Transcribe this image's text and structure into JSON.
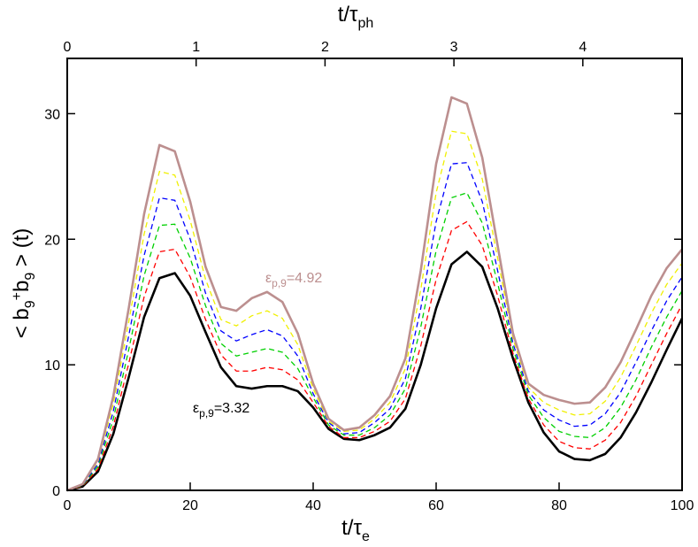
{
  "chart_data": {
    "type": "line",
    "xlabel": [
      "t/τ",
      "e"
    ],
    "x2label": [
      "t/τ",
      "ph"
    ],
    "ylabel": [
      "< b",
      "9",
      "+",
      "b",
      "9",
      " > (t)"
    ],
    "x": [
      0,
      2.5,
      5,
      7.5,
      10,
      12.5,
      15,
      17.5,
      20,
      22.5,
      25,
      27.5,
      30,
      32.5,
      35,
      37.5,
      40,
      42.5,
      45,
      47.5,
      50,
      52.5,
      55,
      57.5,
      60,
      62.5,
      65,
      67.5,
      70,
      72.5,
      75,
      77.5,
      80,
      82.5,
      85,
      87.5,
      90,
      92.5,
      95,
      97.5,
      100
    ],
    "xlim": [
      0,
      100
    ],
    "xticks": [
      0,
      20,
      40,
      60,
      80,
      100
    ],
    "x2lim": [
      0,
      4.77
    ],
    "x2ticks": [
      0,
      1,
      2,
      3,
      4
    ],
    "ylim": [
      0,
      34.4
    ],
    "yticks": [
      0,
      10,
      20,
      30
    ],
    "series": [
      {
        "color": "#000000",
        "dash": false,
        "values": [
          0,
          0.3,
          1.5,
          4.5,
          9.0,
          13.8,
          16.9,
          17.3,
          15.5,
          12.6,
          9.8,
          8.3,
          8.1,
          8.3,
          8.3,
          7.9,
          6.6,
          4.9,
          4.1,
          4.0,
          4.4,
          5.0,
          6.5,
          10.0,
          14.5,
          18.0,
          19.0,
          17.8,
          14.5,
          10.5,
          7.0,
          4.6,
          3.1,
          2.5,
          2.4,
          2.9,
          4.2,
          6.2,
          8.6,
          11.2,
          13.7
        ]
      },
      {
        "color": "#ff0000",
        "dash": true,
        "values": [
          0,
          0.34,
          1.7,
          5.1,
          10.1,
          15.4,
          19.0,
          19.2,
          17.0,
          13.6,
          10.8,
          9.5,
          9.5,
          9.8,
          9.6,
          8.8,
          7.0,
          5.1,
          4.2,
          4.2,
          4.7,
          5.5,
          7.3,
          11.5,
          16.8,
          20.7,
          21.4,
          19.5,
          15.5,
          10.9,
          7.3,
          5.2,
          3.9,
          3.4,
          3.3,
          4.0,
          5.4,
          7.5,
          10.0,
          12.5,
          14.8
        ]
      },
      {
        "color": "#00d000",
        "dash": true,
        "values": [
          0,
          0.38,
          1.9,
          5.7,
          11.2,
          17.1,
          21.1,
          21.2,
          18.5,
          14.7,
          11.7,
          10.7,
          11.0,
          11.3,
          11.0,
          9.7,
          7.4,
          5.2,
          4.4,
          4.4,
          5.0,
          6.0,
          8.1,
          13.0,
          19.1,
          23.3,
          23.7,
          21.3,
          16.5,
          11.3,
          7.6,
          5.8,
          4.7,
          4.3,
          4.2,
          5.0,
          6.6,
          8.8,
          11.4,
          13.8,
          15.9
        ]
      },
      {
        "color": "#0000ff",
        "dash": true,
        "values": [
          0,
          0.42,
          2.1,
          6.3,
          12.3,
          18.7,
          23.3,
          23.1,
          20.0,
          15.7,
          12.7,
          11.9,
          12.4,
          12.8,
          12.3,
          10.7,
          7.7,
          5.4,
          4.5,
          4.6,
          5.4,
          6.5,
          8.9,
          14.5,
          21.4,
          26.0,
          26.1,
          23.0,
          17.5,
          11.7,
          7.9,
          6.4,
          5.6,
          5.1,
          5.2,
          6.1,
          7.8,
          10.2,
          12.7,
          15.1,
          17.0
        ]
      },
      {
        "color": "#f0f000",
        "dash": true,
        "values": [
          0,
          0.46,
          2.3,
          6.9,
          13.4,
          20.4,
          25.4,
          25.1,
          21.5,
          16.8,
          13.6,
          13.1,
          13.9,
          14.3,
          13.7,
          11.6,
          8.1,
          5.5,
          4.7,
          4.8,
          5.7,
          7.0,
          9.7,
          16.0,
          23.7,
          28.6,
          28.4,
          24.8,
          18.5,
          12.1,
          8.2,
          7.0,
          6.4,
          6.0,
          6.1,
          7.1,
          9.0,
          11.5,
          14.1,
          16.4,
          18.1
        ]
      },
      {
        "color": "#bc8f8f",
        "dash": false,
        "values": [
          0,
          0.5,
          2.5,
          7.5,
          14.5,
          22.0,
          27.5,
          27.0,
          23.0,
          17.8,
          14.6,
          14.3,
          15.3,
          15.8,
          15.0,
          12.5,
          8.5,
          5.7,
          4.8,
          5.0,
          6.0,
          7.5,
          10.5,
          17.5,
          26.0,
          31.3,
          30.8,
          26.5,
          19.5,
          12.5,
          8.5,
          7.6,
          7.2,
          6.9,
          7.0,
          8.2,
          10.2,
          12.8,
          15.5,
          17.7,
          19.2
        ]
      }
    ],
    "annotations": [
      {
        "text": [
          "ε",
          "p,9",
          "=4.92"
        ],
        "color": "#bc8f8f"
      },
      {
        "text": [
          "ε",
          "p,9",
          "=3.32"
        ],
        "color": "#000000"
      }
    ]
  }
}
